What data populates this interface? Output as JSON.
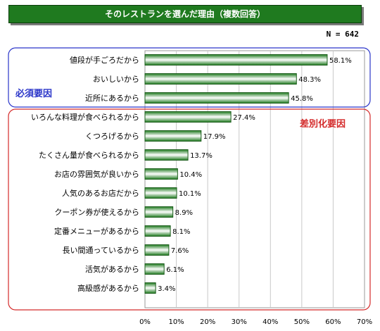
{
  "header": {
    "title": "そのレストランを選んだ理由（複数回答）",
    "n_label": "N = 642"
  },
  "groups": [
    {
      "label": "必須要因",
      "color": "#2a35c9"
    },
    {
      "label": "差別化要因",
      "color": "#d42a2a"
    }
  ],
  "chart_data": {
    "type": "bar",
    "orientation": "horizontal",
    "categories": [
      "値段が手ごろだから",
      "おいしいから",
      "近所にあるから",
      "いろんな料理が食べられるから",
      "くつろげるから",
      "たくさん量が食べられるから",
      "お店の雰囲気が良いから",
      "人気のあるお店だから",
      "クーポン券が使えるから",
      "定番メニューがあるから",
      "長い間通っているから",
      "活気があるから",
      "高級感があるから"
    ],
    "values": [
      58.1,
      48.3,
      45.8,
      27.4,
      17.9,
      13.7,
      10.4,
      10.1,
      8.9,
      8.1,
      7.6,
      6.1,
      3.4
    ],
    "value_labels": [
      "58.1%",
      "48.3%",
      "45.8%",
      "27.4%",
      "17.9%",
      "13.7%",
      "10.4%",
      "10.1%",
      "8.9%",
      "8.1%",
      "7.6%",
      "6.1%",
      "3.4%"
    ],
    "xlim": [
      0,
      70
    ],
    "xticks": [
      "0%",
      "10%",
      "20%",
      "30%",
      "40%",
      "50%",
      "60%",
      "70%"
    ],
    "grid": true,
    "bar_color": "#1f7a1f"
  }
}
